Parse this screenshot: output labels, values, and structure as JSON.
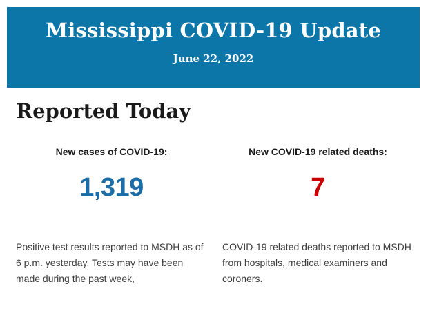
{
  "banner": {
    "title": "Mississippi COVID-19 Update",
    "date": "June 22, 2022"
  },
  "section": {
    "heading": "Reported Today"
  },
  "stats": {
    "cases": {
      "label": "New cases of COVID-19:",
      "value": "1,319",
      "description": "Positive test results reported to MSDH as of 6 p.m. yesterday. Tests may have been made during the past week,"
    },
    "deaths": {
      "label": "New COVID-19 related deaths:",
      "value": "7",
      "description": "COVID-19 related deaths reported to MSDH from hospitals, medical examiners and coroners."
    }
  },
  "colors": {
    "banner_bg": "#0d76a8",
    "banner_text": "#ffffff",
    "heading_text": "#1a1a1a",
    "label_text": "#1a1a1a",
    "cases_value": "#1c6ca5",
    "deaths_value": "#c90000",
    "body_text": "#3d3d3d",
    "page_bg": "#ffffff"
  }
}
